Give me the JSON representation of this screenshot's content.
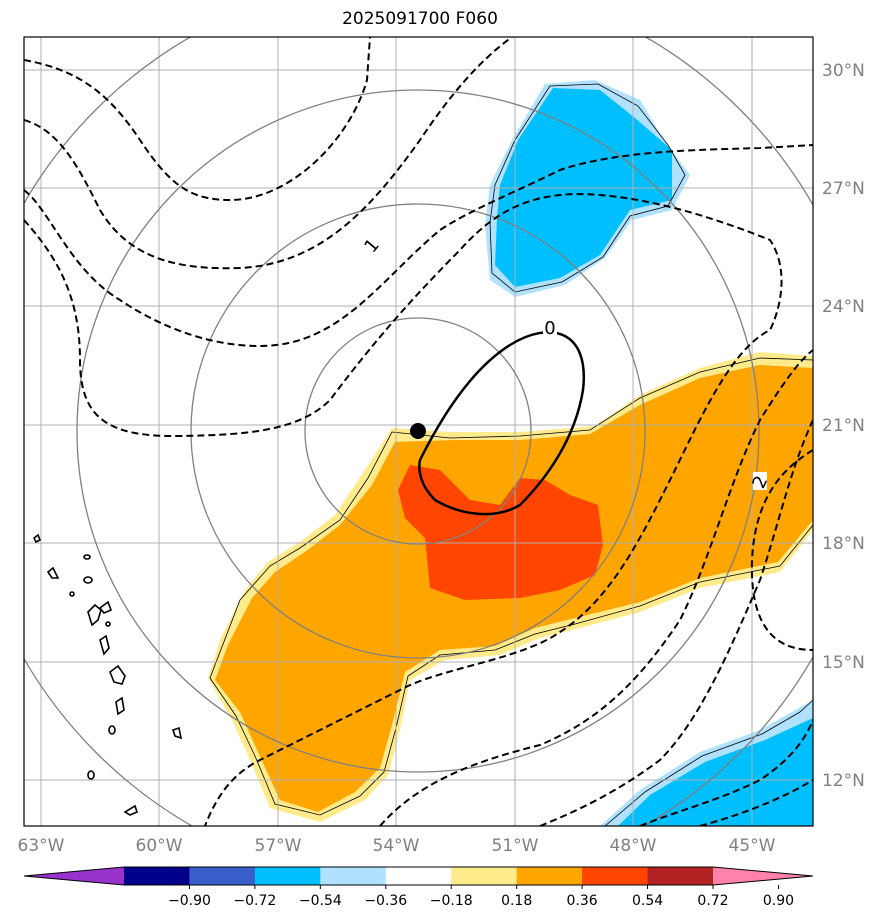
{
  "title": "2025091700 F060",
  "lat_labels": [
    "30°N",
    "27°N",
    "24°N",
    "21°N",
    "18°N",
    "15°N",
    "12°N"
  ],
  "lon_labels": [
    "63°W",
    "60°W",
    "57°W",
    "54°W",
    "51°W",
    "48°W",
    "45°W"
  ],
  "colorbar": {
    "ticks": [
      "−0.90",
      "−0.72",
      "−0.54",
      "−0.36",
      "−0.18",
      "0.18",
      "0.36",
      "0.54",
      "0.72",
      "0.90"
    ],
    "colors": [
      "#9933cc",
      "#00008b",
      "#3a5fcd",
      "#00bfff",
      "#b0e2ff",
      "#ffffff",
      "#ffeb8c",
      "#ffa500",
      "#ff4500",
      "#b22222",
      "#ff82ab"
    ]
  },
  "contour_labels": {
    "zero": "0",
    "one": "1",
    "two": "2"
  },
  "storm_center": {
    "lat": 20.8,
    "lon": -53.4
  }
}
